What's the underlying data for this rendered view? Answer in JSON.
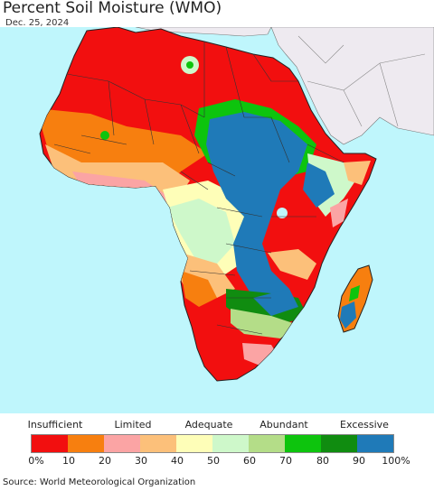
{
  "header": {
    "title": "Percent Soil Moisture (WMO)",
    "date": "Dec. 25, 2024"
  },
  "legend": {
    "categories": [
      "Insufficient",
      "Limited",
      "Adequate",
      "Abundant",
      "Excessive"
    ],
    "colors": [
      "#f20f0f",
      "#f77f0f",
      "#fba4a4",
      "#fcc07a",
      "#fefeb8",
      "#cef8ca",
      "#b4dd88",
      "#0dc40d",
      "#108c10",
      "#1f7ab8"
    ],
    "ticks": [
      "0%",
      "10",
      "20",
      "30",
      "40",
      "50",
      "60",
      "70",
      "80",
      "90",
      "100%"
    ]
  },
  "footer": {
    "source": "Source: World Meteorological Organization"
  }
}
